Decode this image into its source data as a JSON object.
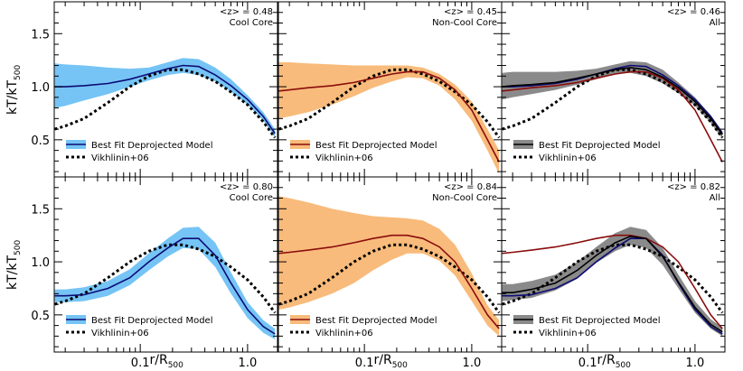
{
  "chart_data": {
    "type": "line",
    "layout": "2x3 grid, shared axes",
    "xlabel_main": "r/R",
    "xlabel_sub": "500",
    "ylabel_main": "kT/kT",
    "ylabel_sub": "500",
    "x_scale": "log",
    "xlim": [
      0.0158,
      1.9
    ],
    "ylim": [
      0.15,
      1.8
    ],
    "x_ticks": [
      {
        "value": 0.1,
        "label": "0.1"
      },
      {
        "value": 1.0,
        "label": "1.0"
      }
    ],
    "y_ticks": [
      {
        "value": 0.5,
        "label": "0.5"
      },
      {
        "value": 1.0,
        "label": "1.0"
      },
      {
        "value": 1.5,
        "label": "1.5"
      }
    ],
    "colors": {
      "cool_band": "#75c4f5",
      "noncool_band": "#f8bb7b",
      "all_band": "#8a8a8a",
      "navy": "#0d0b74",
      "red": "#8a0c0c",
      "black": "#000000"
    },
    "legend": {
      "model_label": "Best Fit Deprojected Model",
      "reference_label": "Vikhlinin+06"
    },
    "x": [
      0.016,
      0.02,
      0.03,
      0.05,
      0.08,
      0.12,
      0.18,
      0.25,
      0.35,
      0.5,
      0.7,
      1.0,
      1.4,
      1.8
    ],
    "vikhlinin_curve": [
      0.6,
      0.63,
      0.7,
      0.85,
      1.0,
      1.1,
      1.16,
      1.16,
      1.12,
      1.05,
      0.95,
      0.83,
      0.67,
      0.52
    ],
    "panels": [
      {
        "annotation_z": "<z> = 0.48",
        "annotation_type": "Cool Core",
        "band_color_key": "cool_band",
        "model_color_key": "navy",
        "band_lower": [
          0.8,
          0.82,
          0.87,
          0.93,
          1.0,
          1.06,
          1.11,
          1.13,
          1.11,
          1.05,
          0.95,
          0.83,
          0.68,
          0.52
        ],
        "band_upper": [
          1.22,
          1.21,
          1.2,
          1.18,
          1.17,
          1.18,
          1.23,
          1.27,
          1.26,
          1.18,
          1.07,
          0.92,
          0.76,
          0.6
        ],
        "model": [
          1.0,
          1.0,
          1.01,
          1.03,
          1.07,
          1.12,
          1.17,
          1.2,
          1.19,
          1.11,
          1.01,
          0.88,
          0.72,
          0.56
        ],
        "extra_curves": []
      },
      {
        "annotation_z": "<z> = 0.45",
        "annotation_type": "Non-Cool Core",
        "band_color_key": "noncool_band",
        "model_color_key": "red",
        "band_lower": [
          0.7,
          0.72,
          0.76,
          0.83,
          0.91,
          0.99,
          1.05,
          1.09,
          1.08,
          1.01,
          0.88,
          0.68,
          0.4,
          0.18
        ],
        "band_upper": [
          1.23,
          1.23,
          1.22,
          1.21,
          1.2,
          1.2,
          1.2,
          1.2,
          1.18,
          1.12,
          1.02,
          0.86,
          0.6,
          0.4
        ],
        "model": [
          0.96,
          0.97,
          0.99,
          1.01,
          1.04,
          1.08,
          1.12,
          1.14,
          1.14,
          1.08,
          0.97,
          0.78,
          0.5,
          0.29
        ],
        "extra_curves": []
      },
      {
        "annotation_z": "<z> = 0.46",
        "annotation_type": "All",
        "band_color_key": "all_band",
        "model_color_key": "black",
        "band_lower": [
          0.88,
          0.9,
          0.93,
          0.97,
          1.02,
          1.07,
          1.12,
          1.13,
          1.1,
          1.03,
          0.94,
          0.82,
          0.66,
          0.51
        ],
        "band_upper": [
          1.13,
          1.14,
          1.14,
          1.14,
          1.15,
          1.17,
          1.21,
          1.24,
          1.23,
          1.16,
          1.04,
          0.9,
          0.73,
          0.58
        ],
        "model": [
          1.0,
          1.01,
          1.02,
          1.04,
          1.08,
          1.12,
          1.16,
          1.18,
          1.16,
          1.09,
          0.99,
          0.86,
          0.7,
          0.55
        ],
        "extra_curves": [
          {
            "color_key": "navy",
            "values": [
              1.0,
              1.0,
              1.01,
              1.03,
              1.07,
              1.12,
              1.17,
              1.2,
              1.19,
              1.11,
              1.01,
              0.88,
              0.72,
              0.56
            ]
          },
          {
            "color_key": "red",
            "values": [
              0.96,
              0.97,
              0.99,
              1.01,
              1.04,
              1.08,
              1.12,
              1.14,
              1.14,
              1.08,
              0.97,
              0.78,
              0.5,
              0.29
            ]
          }
        ]
      },
      {
        "annotation_z": "<z> = 0.80",
        "annotation_type": "Cool Core",
        "band_color_key": "cool_band",
        "model_color_key": "navy",
        "band_lower": [
          0.62,
          0.62,
          0.63,
          0.68,
          0.78,
          0.92,
          1.05,
          1.13,
          1.12,
          0.95,
          0.7,
          0.47,
          0.33,
          0.27
        ],
        "band_upper": [
          0.74,
          0.74,
          0.76,
          0.82,
          0.93,
          1.08,
          1.22,
          1.32,
          1.33,
          1.18,
          0.9,
          0.62,
          0.45,
          0.37
        ],
        "model": [
          0.68,
          0.68,
          0.69,
          0.75,
          0.85,
          1.0,
          1.13,
          1.22,
          1.22,
          1.06,
          0.8,
          0.55,
          0.39,
          0.32
        ],
        "extra_curves": []
      },
      {
        "annotation_z": "<z> = 0.84",
        "annotation_type": "Non-Cool Core",
        "band_color_key": "noncool_band",
        "model_color_key": "red",
        "band_lower": [
          0.55,
          0.57,
          0.62,
          0.7,
          0.8,
          0.92,
          1.02,
          1.08,
          1.08,
          1.01,
          0.87,
          0.63,
          0.4,
          0.3
        ],
        "band_upper": [
          1.62,
          1.6,
          1.56,
          1.5,
          1.46,
          1.43,
          1.42,
          1.41,
          1.39,
          1.31,
          1.16,
          0.89,
          0.59,
          0.45
        ],
        "model": [
          1.08,
          1.09,
          1.11,
          1.14,
          1.18,
          1.22,
          1.25,
          1.25,
          1.22,
          1.14,
          1.0,
          0.75,
          0.5,
          0.37
        ],
        "extra_curves": []
      },
      {
        "annotation_z": "<z> = 0.82",
        "annotation_type": "All",
        "band_color_key": "all_band",
        "model_color_key": "black",
        "band_lower": [
          0.63,
          0.64,
          0.66,
          0.73,
          0.84,
          0.99,
          1.1,
          1.16,
          1.13,
          0.97,
          0.75,
          0.52,
          0.37,
          0.3
        ],
        "band_upper": [
          0.79,
          0.79,
          0.82,
          0.88,
          1.0,
          1.14,
          1.27,
          1.33,
          1.3,
          1.13,
          0.88,
          0.63,
          0.46,
          0.38
        ],
        "model": [
          0.71,
          0.71,
          0.74,
          0.8,
          0.92,
          1.06,
          1.18,
          1.24,
          1.22,
          1.05,
          0.81,
          0.57,
          0.41,
          0.34
        ],
        "extra_curves": [
          {
            "color_key": "navy",
            "values": [
              0.68,
              0.68,
              0.69,
              0.75,
              0.85,
              1.0,
              1.13,
              1.22,
              1.22,
              1.06,
              0.8,
              0.55,
              0.39,
              0.32
            ]
          },
          {
            "color_key": "red",
            "values": [
              1.08,
              1.09,
              1.11,
              1.14,
              1.18,
              1.22,
              1.25,
              1.25,
              1.22,
              1.14,
              1.0,
              0.75,
              0.5,
              0.37
            ]
          }
        ]
      }
    ]
  }
}
